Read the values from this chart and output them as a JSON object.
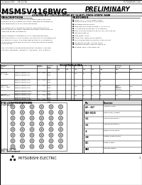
{
  "title_part": "M5M5V416BWG",
  "title_prelim": "PRELIMINARY",
  "subtitle": "4194304-BIT (262144-WORD BY 16-BIT) CMOS STATIC RAM",
  "header_left": "revision:V03    08.12.96",
  "header_right": "MITSUBISHI LSIs",
  "company": "MITSUBISHI ELECTRIC",
  "section_desc": "DESCRIPTION",
  "section_feat": "FEATURES",
  "section_pin": "PIN CONFIGURATIONS",
  "section_pin2": "(TOP VIEW)",
  "bg_color": "#ffffff",
  "text_color": "#000000",
  "gray_header": "#bbbbbb",
  "desc_text": [
    "The M5M5V416 is a 4 series of low voltage 4 Mbit static RAMs",
    "organized as 262,144words by 16 bits, fabricated by Mitsubishi's",
    "high performance 0.25 um CMOS technology.",
    "",
    "The M5M5V416 is suitable for memory applications where a",
    "simple interfacing, battery operating and battery backup are the",
    "important design consideration.",
    "",
    "M5M5V416BWG is packaged in a CSP (chip scale package),",
    "with the outline of 7 mm x 8.5mm, ball matrix of 6 x 8 (48balls) and",
    "ball pitch of 1.27mm. It provides best position on a combination",
    "of recording area as well as flexibility of wiring pattern of printed",
    "circuit boards.",
    "",
    "Over the point of operating temperature, the family is divided",
    "into three categories: \"Standard\", \"Advanced\", and \"e-power\"."
  ],
  "feat_text": [
    "Single +2.7 ~ +3.6V  power supply",
    "Stand-alone for current: 0.3 mA(typ.)",
    "No hidden idle cell mode",
    "Data retention supply voltage: 1.0 V to 3.6 V",
    "All inputs and output are TTL compatible",
    "Easy continuity expansion by /S1, /S2, /S21 and /E0",
    "Pipelined Data I/O",
    "Data Width: 16-bit",
    "Cycle time: 70/85/100 ns capacity",
    "5% polysilide atom connection in the 200 line",
    "Process technology: 0.25 um CMOS",
    "Flowmask: Bypass 70/85 to 100/120 ns",
    "Package: 48pin 7.0x8.5mm CSP"
  ],
  "pin_table": [
    [
      "Pin",
      "Function"
    ],
    [
      "A0 ~ A17",
      "Address Input"
    ],
    [
      "DQ0~DQ15",
      "Data input / output"
    ],
    [
      "/S1",
      "Chip select input 1"
    ],
    [
      "/S2",
      "Chip select input 2"
    ],
    [
      "/E",
      "Write enable input"
    ],
    [
      "/OE",
      "Output enable input"
    ],
    [
      "VCC",
      "Power supply"
    ],
    [
      "GND",
      "Ground supply"
    ]
  ],
  "outline_note": "outline: 48P BA",
  "pkg_note": "PKG: Not Contained"
}
